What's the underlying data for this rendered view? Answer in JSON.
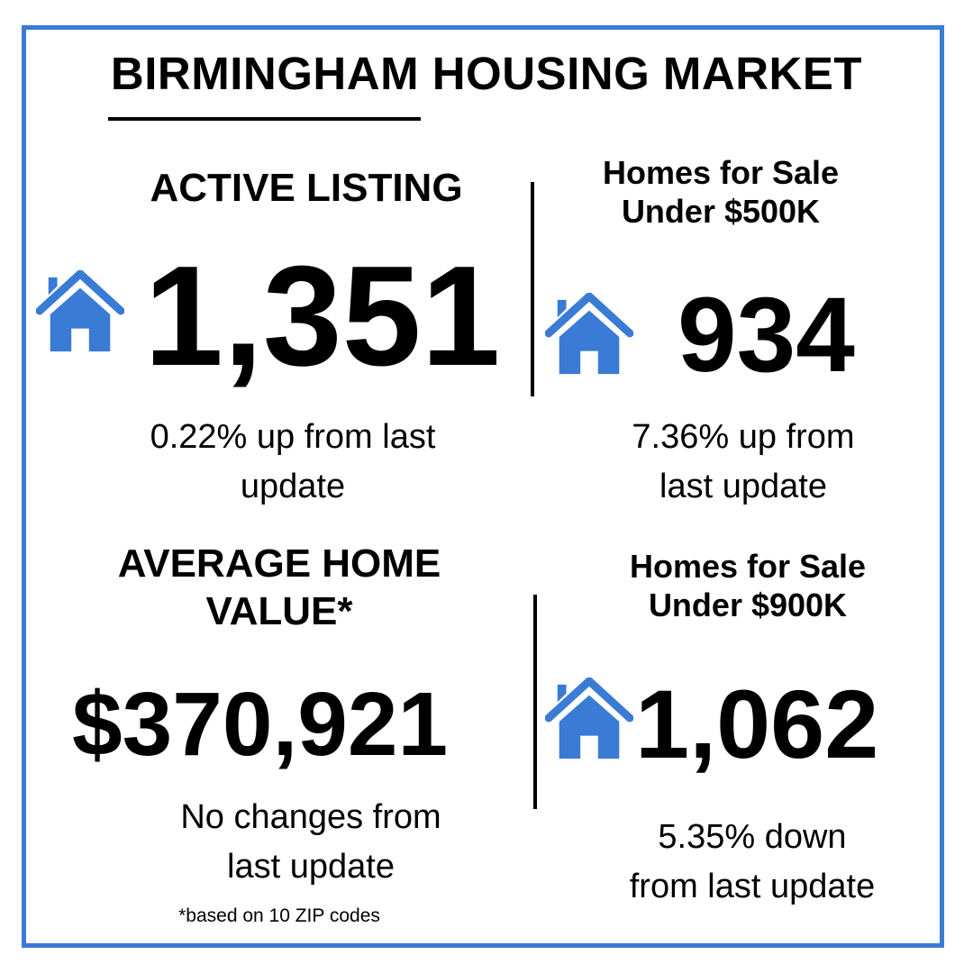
{
  "title": "BIRMINGHAM HOUSING MARKET",
  "colors": {
    "frame": "#3a7bd5",
    "house_icon": "#3a7bd5",
    "text": "#000000"
  },
  "stats": {
    "active_listing": {
      "heading": "ACTIVE LISTING",
      "value": "1,351",
      "change_line1": "0.22% up from last",
      "change_line2": "update",
      "icon": "house-icon"
    },
    "under_500k": {
      "heading_line1": "Homes for Sale",
      "heading_line2": "Under $500K",
      "value": "934",
      "change_line1": "7.36% up from",
      "change_line2": "last update",
      "icon": "house-icon"
    },
    "average_home_value": {
      "heading_line1": "AVERAGE HOME",
      "heading_line2": "VALUE*",
      "value": "$370,921",
      "change_line1": "No changes from",
      "change_line2": "last update",
      "footnote": "*based on 10 ZIP codes"
    },
    "under_900k": {
      "heading_line1": "Homes for Sale",
      "heading_line2": "Under $900K",
      "value": "1,062",
      "change_line1": "5.35% down",
      "change_line2": "from last update",
      "icon": "house-icon"
    }
  }
}
